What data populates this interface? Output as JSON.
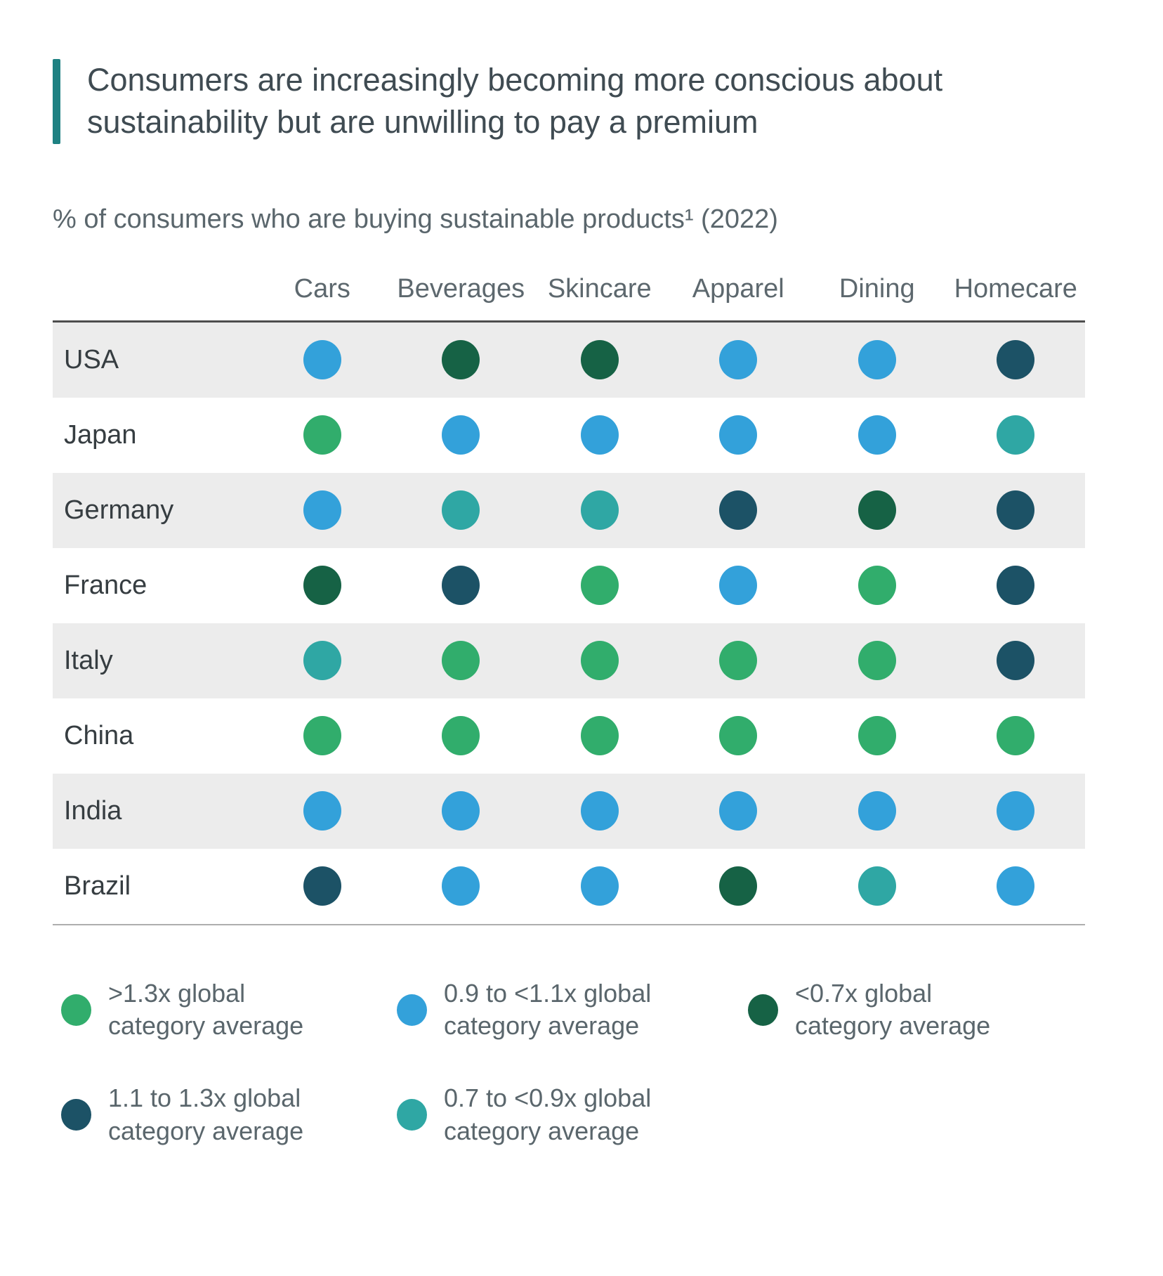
{
  "title": "Consumers are increasingly becoming more conscious about sustainability but are unwilling to pay a premium",
  "subtitle": "% of consumers who are buying sustainable products¹ (2022)",
  "colors": {
    "accent_bar": "#1e8182",
    "title_text": "#3f4b52",
    "muted_text": "#5a666c",
    "row_stripe": "#ececec",
    "green": "#31ad6c",
    "blue": "#33a1da",
    "dark_green": "#166245",
    "navy": "#1c5266",
    "teal": "#2fa7a4"
  },
  "chart_data": {
    "type": "heatmap",
    "title": "Consumers are increasingly becoming more conscious about sustainability but are unwilling to pay a premium",
    "subtitle": "% of consumers who are buying sustainable products¹ (2022)",
    "year": "2022",
    "columns": [
      "Cars",
      "Beverages",
      "Skincare",
      "Apparel",
      "Dining",
      "Homecare"
    ],
    "rows": [
      "USA",
      "Japan",
      "Germany",
      "France",
      "Italy",
      "China",
      "India",
      "Brazil"
    ],
    "value_scale": {
      "green": ">1.3x global category average",
      "blue": "0.9 to <1.1x global category average",
      "teal": "0.7 to <0.9x global category average",
      "navy": "1.1 to 1.3x global category average",
      "dark_green": "<0.7x global category average"
    },
    "cells": [
      [
        "blue",
        "dark_green",
        "dark_green",
        "blue",
        "blue",
        "navy"
      ],
      [
        "green",
        "blue",
        "blue",
        "blue",
        "blue",
        "teal"
      ],
      [
        "blue",
        "teal",
        "teal",
        "navy",
        "dark_green",
        "navy"
      ],
      [
        "dark_green",
        "navy",
        "green",
        "blue",
        "green",
        "navy"
      ],
      [
        "teal",
        "green",
        "green",
        "green",
        "green",
        "navy"
      ],
      [
        "green",
        "green",
        "green",
        "green",
        "green",
        "green"
      ],
      [
        "blue",
        "blue",
        "blue",
        "blue",
        "blue",
        "blue"
      ],
      [
        "navy",
        "blue",
        "blue",
        "dark_green",
        "teal",
        "blue"
      ]
    ],
    "legend": [
      {
        "color_key": "green",
        "label": ">1.3x global\ncategory average"
      },
      {
        "color_key": "blue",
        "label": "0.9 to <1.1x global\ncategory average"
      },
      {
        "color_key": "dark_green",
        "label": "<0.7x global\ncategory average"
      },
      {
        "color_key": "navy",
        "label": "1.1 to 1.3x global\ncategory average"
      },
      {
        "color_key": "teal",
        "label": "0.7 to <0.9x global\ncategory average"
      }
    ],
    "layout": {
      "legend_position": "bottom",
      "row_striping": true,
      "grid": false
    }
  }
}
